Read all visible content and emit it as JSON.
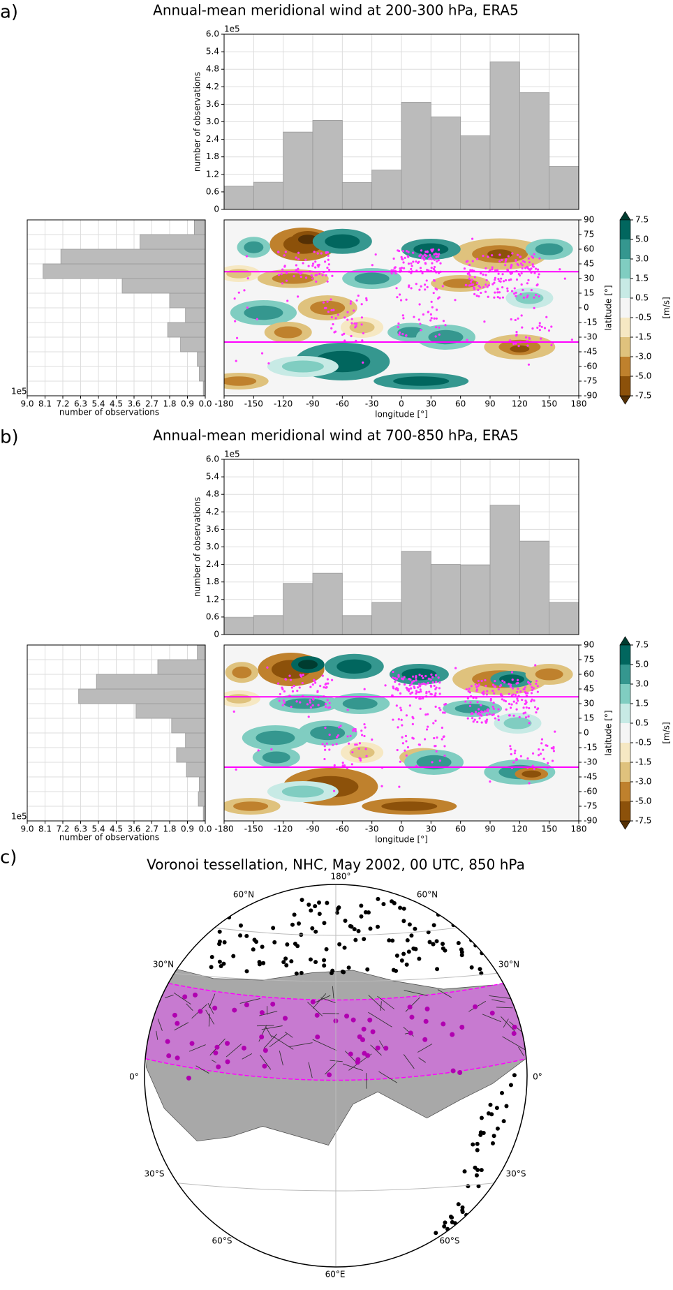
{
  "chart_data": [
    {
      "type": "histogram",
      "label": "a)",
      "title": "Annual-mean meridional wind at 200-300 hPa, ERA5",
      "bins": [
        -180,
        -150,
        -120,
        -90,
        -60,
        -30,
        0,
        30,
        60,
        90,
        120,
        150,
        180
      ],
      "counts": [
        0.8,
        0.93,
        2.65,
        3.05,
        0.92,
        1.35,
        3.67,
        3.17,
        2.52,
        5.05,
        4.0,
        1.47
      ],
      "xlim": [
        -180,
        180
      ],
      "xticks": [
        -180,
        -150,
        -120,
        -90,
        -60,
        -30,
        0,
        30,
        60,
        90,
        120,
        150,
        180
      ],
      "ylim": [
        0,
        6
      ],
      "yticks": [
        0,
        0.6,
        1.2,
        1.8,
        2.4,
        {
          "value": 3,
          "label": "3.0"
        },
        3.6,
        4.2,
        4.8,
        5.4,
        {
          "value": 6,
          "label": "6.0"
        }
      ],
      "ylabel": "number of observations",
      "offset_label": "1e5",
      "color": "#bbbbbb",
      "grid": true
    },
    {
      "type": "histogram",
      "orientation": "horizontal",
      "bins": [
        -90,
        -75,
        -60,
        -45,
        -30,
        -15,
        0,
        15,
        30,
        45,
        60,
        75,
        90
      ],
      "counts": [
        0.1,
        0.3,
        0.4,
        1.25,
        1.9,
        1.0,
        1.8,
        4.2,
        8.2,
        7.3,
        3.3,
        0.55
      ],
      "xlim": [
        9,
        0
      ],
      "xticks": [
        {
          "value": 9,
          "label": "9.0"
        },
        8.1,
        7.2,
        6.3,
        5.4,
        4.5,
        3.6,
        2.7,
        1.8,
        0.9,
        {
          "value": 0,
          "label": "0.0"
        }
      ],
      "ylim": [
        -90,
        90
      ],
      "yticks": [
        -90,
        -75,
        -60,
        -45,
        -30,
        -15,
        0,
        15,
        30,
        45,
        60,
        75,
        90
      ],
      "xlabel": "number of observations",
      "offset_label": "1e5",
      "color": "#bbbbbb",
      "grid": true
    },
    {
      "type": "contour-map",
      "xlim": [
        -180,
        180
      ],
      "ylim": [
        -90,
        90
      ],
      "xticks": [
        -180,
        -150,
        -120,
        -90,
        -60,
        -30,
        0,
        30,
        60,
        90,
        120,
        150,
        180
      ],
      "yticks": [
        -90,
        -75,
        -60,
        -45,
        -30,
        -15,
        0,
        15,
        30,
        45,
        60,
        75,
        90
      ],
      "xlabel": "longitude [°]",
      "ylabel": "latitude [°]",
      "band_lat": [
        -35,
        37
      ],
      "band_color": "#ff00ff",
      "colorbar": {
        "levels": [
          -7.5,
          {
            "value": -5,
            "label": "-5.0"
          },
          {
            "value": -3,
            "label": "-3.0"
          },
          -1.5,
          -0.5,
          0.5,
          1.5,
          {
            "value": 3,
            "label": "3.0"
          },
          {
            "value": 5,
            "label": "5.0"
          },
          7.5
        ],
        "colors": [
          "#543005",
          "#8c510a",
          "#bf812d",
          "#dfc27d",
          "#f6e8c3",
          "#f5f5f5",
          "#c7eae5",
          "#80cdc1",
          "#35978f",
          "#01665e",
          "#003c30"
        ],
        "label": "[m/s]"
      }
    },
    {
      "type": "histogram",
      "label": "b)",
      "title": "Annual-mean meridional wind at 700-850 hPa, ERA5",
      "bins": [
        -180,
        -150,
        -120,
        -90,
        -60,
        -30,
        0,
        30,
        60,
        90,
        120,
        150,
        180
      ],
      "counts": [
        0.58,
        0.65,
        1.75,
        2.1,
        0.65,
        1.1,
        2.85,
        2.4,
        2.38,
        4.43,
        3.2,
        1.1
      ],
      "xlim": [
        -180,
        180
      ],
      "xticks": [
        -180,
        -150,
        -120,
        -90,
        -60,
        -30,
        0,
        30,
        60,
        90,
        120,
        150,
        180
      ],
      "ylim": [
        0,
        6
      ],
      "yticks": [
        0,
        0.6,
        1.2,
        1.8,
        2.4,
        {
          "value": 3,
          "label": "3.0"
        },
        3.6,
        4.2,
        4.8,
        5.4,
        {
          "value": 6,
          "label": "6.0"
        }
      ],
      "ylabel": "number of observations",
      "offset_label": "1e5",
      "color": "#bbbbbb",
      "grid": true
    },
    {
      "type": "histogram",
      "orientation": "horizontal",
      "bins": [
        -90,
        -75,
        -60,
        -45,
        -30,
        -15,
        0,
        15,
        30,
        45,
        60,
        75,
        90
      ],
      "counts": [
        0.1,
        0.35,
        0.3,
        0.95,
        1.45,
        1.0,
        1.7,
        3.5,
        6.4,
        5.5,
        2.4,
        0.4
      ],
      "xlim": [
        9,
        0
      ],
      "xticks": [
        {
          "value": 9,
          "label": "9.0"
        },
        8.1,
        7.2,
        6.3,
        5.4,
        4.5,
        3.6,
        2.7,
        1.8,
        0.9,
        {
          "value": 0,
          "label": "0.0"
        }
      ],
      "ylim": [
        -90,
        90
      ],
      "yticks": [
        -90,
        -75,
        -60,
        -45,
        -30,
        -15,
        0,
        15,
        30,
        45,
        60,
        75,
        90
      ],
      "xlabel": "number of observations",
      "offset_label": "1e5",
      "color": "#bbbbbb",
      "grid": true
    },
    {
      "type": "contour-map",
      "xlim": [
        -180,
        180
      ],
      "ylim": [
        -90,
        90
      ],
      "xticks": [
        -180,
        -150,
        -120,
        -90,
        -60,
        -30,
        0,
        30,
        60,
        90,
        120,
        150,
        180
      ],
      "yticks": [
        -90,
        -75,
        -60,
        -45,
        -30,
        -15,
        0,
        15,
        30,
        45,
        60,
        75,
        90
      ],
      "xlabel": "longitude [°]",
      "ylabel": "latitude [°]",
      "band_lat": [
        -35,
        37
      ],
      "band_color": "#ff00ff",
      "colorbar": {
        "levels": [
          -7.5,
          {
            "value": -5,
            "label": "-5.0"
          },
          {
            "value": -3,
            "label": "-3.0"
          },
          -1.5,
          -0.5,
          0.5,
          1.5,
          {
            "value": 3,
            "label": "3.0"
          },
          {
            "value": 5,
            "label": "5.0"
          },
          7.5
        ],
        "colors": [
          "#543005",
          "#8c510a",
          "#bf812d",
          "#dfc27d",
          "#f6e8c3",
          "#f5f5f5",
          "#c7eae5",
          "#80cdc1",
          "#35978f",
          "#01665e",
          "#003c30"
        ],
        "label": "[m/s]"
      }
    }
  ],
  "globe": {
    "label": "c)",
    "title": "Voronoi tessellation, NHC, May 2002, 00 UTC, 850 hPa",
    "labels": [
      "180°",
      "60°N",
      "60°N",
      "30°N",
      "30°N",
      "0°",
      "0°",
      "30°S",
      "30°S",
      "60°S",
      "60°S",
      "60°E"
    ]
  }
}
